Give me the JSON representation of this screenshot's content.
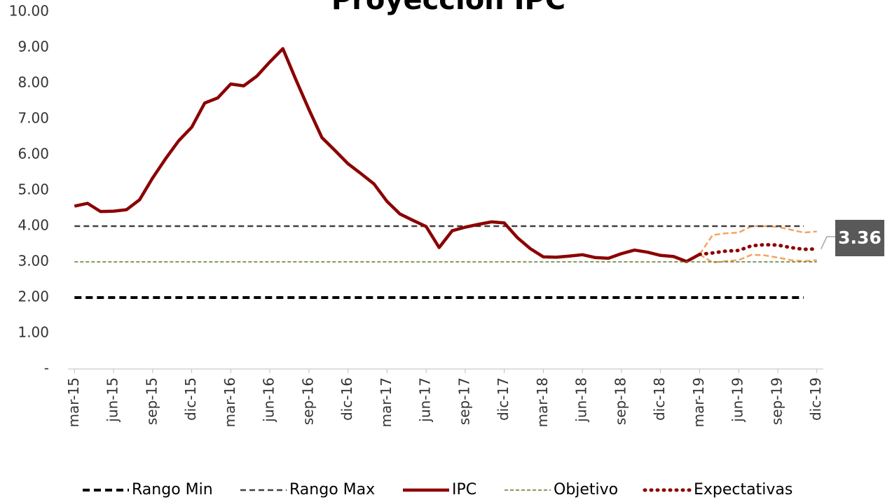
{
  "chart_data": {
    "type": "line",
    "title": "Proyección IPC",
    "categories": [
      "mar-15",
      null,
      null,
      "jun-15",
      null,
      null,
      "sep-15",
      null,
      null,
      "dic-15",
      null,
      null,
      "mar-16",
      null,
      null,
      "jun-16",
      null,
      null,
      "sep-16",
      null,
      null,
      "dic-16",
      null,
      null,
      "mar-17",
      null,
      null,
      "jun-17",
      null,
      null,
      "sep-17",
      null,
      null,
      "dic-17",
      null,
      null,
      "mar-18",
      null,
      null,
      "jun-18",
      null,
      null,
      "sep-18",
      null,
      null,
      "dic-18",
      null,
      null,
      "mar-19",
      null,
      null,
      "jun-19",
      null,
      null,
      "sep-19",
      null,
      null,
      "dic-19"
    ],
    "ylim": [
      0,
      10
    ],
    "yticks": [
      {
        "value": 0,
        "label": "-"
      },
      {
        "value": 1,
        "label": "1.00"
      },
      {
        "value": 2,
        "label": "2.00"
      },
      {
        "value": 3,
        "label": "3.00"
      },
      {
        "value": 4,
        "label": "4.00"
      },
      {
        "value": 5,
        "label": "5.00"
      },
      {
        "value": 6,
        "label": "6.00"
      },
      {
        "value": 7,
        "label": "7.00"
      },
      {
        "value": 8,
        "label": "8.00"
      },
      {
        "value": 9,
        "label": "9.00"
      },
      {
        "value": 10,
        "label": "10.00"
      }
    ],
    "series": [
      {
        "name": "Rango Min",
        "color": "#000000",
        "style": "dash-thick",
        "values": [
          2,
          2,
          2,
          2,
          2,
          2,
          2,
          2,
          2,
          2,
          2,
          2,
          2,
          2,
          2,
          2,
          2,
          2,
          2,
          2,
          2,
          2,
          2,
          2,
          2,
          2,
          2,
          2,
          2,
          2,
          2,
          2,
          2,
          2,
          2,
          2,
          2,
          2,
          2,
          2,
          2,
          2,
          2,
          2,
          2,
          2,
          2,
          2,
          2,
          2,
          2,
          2,
          2,
          2,
          2,
          2,
          2,
          null
        ]
      },
      {
        "name": "Rango Max",
        "color": "#404040",
        "style": "dash",
        "values": [
          4,
          4,
          4,
          4,
          4,
          4,
          4,
          4,
          4,
          4,
          4,
          4,
          4,
          4,
          4,
          4,
          4,
          4,
          4,
          4,
          4,
          4,
          4,
          4,
          4,
          4,
          4,
          4,
          4,
          4,
          4,
          4,
          4,
          4,
          4,
          4,
          4,
          4,
          4,
          4,
          4,
          4,
          4,
          4,
          4,
          4,
          4,
          4,
          4,
          4,
          4,
          4,
          4,
          4,
          4,
          4,
          4,
          null
        ]
      },
      {
        "name": "IPC",
        "color": "#8b0000",
        "style": "solid",
        "values": [
          4.56,
          4.64,
          4.41,
          4.42,
          4.46,
          4.74,
          5.35,
          5.89,
          6.39,
          6.77,
          7.45,
          7.59,
          7.98,
          7.93,
          8.2,
          8.6,
          8.97,
          8.1,
          7.27,
          6.48,
          6.12,
          5.75,
          5.47,
          5.18,
          4.69,
          4.34,
          4.16,
          3.99,
          3.4,
          3.87,
          3.97,
          4.05,
          4.12,
          4.09,
          3.68,
          3.37,
          3.14,
          3.13,
          3.16,
          3.2,
          3.12,
          3.1,
          3.23,
          3.33,
          3.27,
          3.18,
          3.15,
          3.01,
          3.21,
          null,
          null,
          null,
          null,
          null,
          null,
          null,
          null,
          null
        ]
      },
      {
        "name": "Objetivo",
        "color": "#5a7a2a",
        "style": "dash-thin",
        "values": [
          3,
          3,
          3,
          3,
          3,
          3,
          3,
          3,
          3,
          3,
          3,
          3,
          3,
          3,
          3,
          3,
          3,
          3,
          3,
          3,
          3,
          3,
          3,
          3,
          3,
          3,
          3,
          3,
          3,
          3,
          3,
          3,
          3,
          3,
          3,
          3,
          3,
          3,
          3,
          3,
          3,
          3,
          3,
          3,
          3,
          3,
          3,
          3,
          3,
          3,
          3,
          3,
          3,
          3,
          3,
          3,
          3,
          3
        ]
      },
      {
        "name": "Expectativas",
        "color": "#8b0000",
        "style": "dot",
        "values": [
          null,
          null,
          null,
          null,
          null,
          null,
          null,
          null,
          null,
          null,
          null,
          null,
          null,
          null,
          null,
          null,
          null,
          null,
          null,
          null,
          null,
          null,
          null,
          null,
          null,
          null,
          null,
          null,
          null,
          null,
          null,
          null,
          null,
          null,
          null,
          null,
          null,
          null,
          null,
          null,
          null,
          null,
          null,
          null,
          null,
          null,
          null,
          null,
          3.21,
          3.25,
          3.3,
          3.32,
          3.45,
          3.48,
          3.47,
          3.4,
          3.35,
          3.36
        ],
        "value_labels": [
          null,
          null,
          null,
          null,
          null,
          null,
          null,
          null,
          null,
          null,
          null,
          null,
          null,
          null,
          null,
          null,
          null,
          null,
          null,
          null,
          null,
          null,
          null,
          null,
          null,
          null,
          null,
          null,
          null,
          null,
          null,
          null,
          null,
          null,
          null,
          null,
          null,
          null,
          null,
          null,
          null,
          null,
          null,
          null,
          null,
          null,
          null,
          null,
          null,
          null,
          null,
          null,
          null,
          null,
          null,
          null,
          null,
          "3.36"
        ]
      }
    ],
    "bands": [
      {
        "color": "#f4a460",
        "values": [
          null,
          null,
          null,
          null,
          null,
          null,
          null,
          null,
          null,
          null,
          null,
          null,
          null,
          null,
          null,
          null,
          null,
          null,
          null,
          null,
          null,
          null,
          null,
          null,
          null,
          null,
          null,
          null,
          null,
          null,
          null,
          null,
          null,
          null,
          null,
          null,
          null,
          null,
          null,
          null,
          null,
          null,
          null,
          null,
          null,
          null,
          null,
          null,
          3.21,
          3.75,
          3.8,
          3.82,
          4.0,
          4.0,
          3.98,
          3.9,
          3.82,
          3.85
        ]
      },
      {
        "color": "#f4a460",
        "values": [
          null,
          null,
          null,
          null,
          null,
          null,
          null,
          null,
          null,
          null,
          null,
          null,
          null,
          null,
          null,
          null,
          null,
          null,
          null,
          null,
          null,
          null,
          null,
          null,
          null,
          null,
          null,
          null,
          null,
          null,
          null,
          null,
          null,
          null,
          null,
          null,
          null,
          null,
          null,
          null,
          null,
          null,
          null,
          null,
          null,
          null,
          null,
          null,
          3.21,
          2.98,
          3.02,
          3.05,
          3.2,
          3.18,
          3.12,
          3.05,
          3.02,
          3.05
        ]
      }
    ]
  }
}
